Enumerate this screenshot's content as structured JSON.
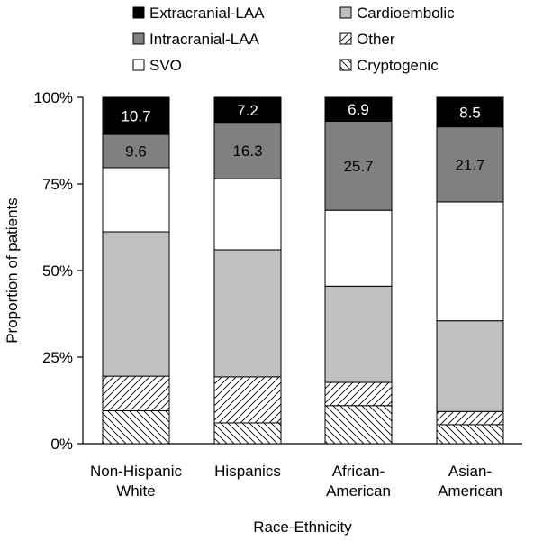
{
  "chart_data": {
    "type": "bar",
    "stacked": true,
    "categories": [
      [
        "Non-Hispanic",
        "White"
      ],
      [
        "Hispanics"
      ],
      [
        "African-",
        "American"
      ],
      [
        "Asian-",
        "American"
      ]
    ],
    "series": [
      {
        "name": "Cryptogenic",
        "values": [
          9.5,
          6.0,
          11.0,
          5.5
        ],
        "fill": "cryptogenic",
        "label": false
      },
      {
        "name": "Other",
        "values": [
          10.0,
          13.3,
          6.7,
          3.8
        ],
        "fill": "other",
        "label": false
      },
      {
        "name": "Cardioembolic",
        "values": [
          41.7,
          36.7,
          27.8,
          26.2
        ],
        "fill": "#c0c0c0",
        "label": false
      },
      {
        "name": "SVO",
        "values": [
          18.5,
          20.5,
          21.9,
          34.3
        ],
        "fill": "#ffffff",
        "label": false
      },
      {
        "name": "Intracranial-LAA",
        "values": [
          9.6,
          16.3,
          25.7,
          21.7
        ],
        "fill": "#808080",
        "label": true,
        "labelColor": "#000000"
      },
      {
        "name": "Extracranial-LAA",
        "values": [
          10.7,
          7.2,
          6.9,
          8.5
        ],
        "fill": "#000000",
        "label": true,
        "labelColor": "#ffffff"
      }
    ],
    "legend": {
      "placement": "top",
      "left_column": [
        "Extracranial-LAA",
        "Intracranial-LAA",
        "SVO"
      ],
      "right_column": [
        "Cardioembolic",
        "Other",
        "Cryptogenic"
      ]
    },
    "xlabel": "Race-Ethnicity",
    "ylabel": "Proportion of patients",
    "ylim": [
      0,
      100
    ],
    "yticks": [
      0,
      25,
      50,
      75,
      100
    ],
    "ytick_labels": [
      "0%",
      "25%",
      "50%",
      "75%",
      "100%"
    ],
    "grid": false
  }
}
